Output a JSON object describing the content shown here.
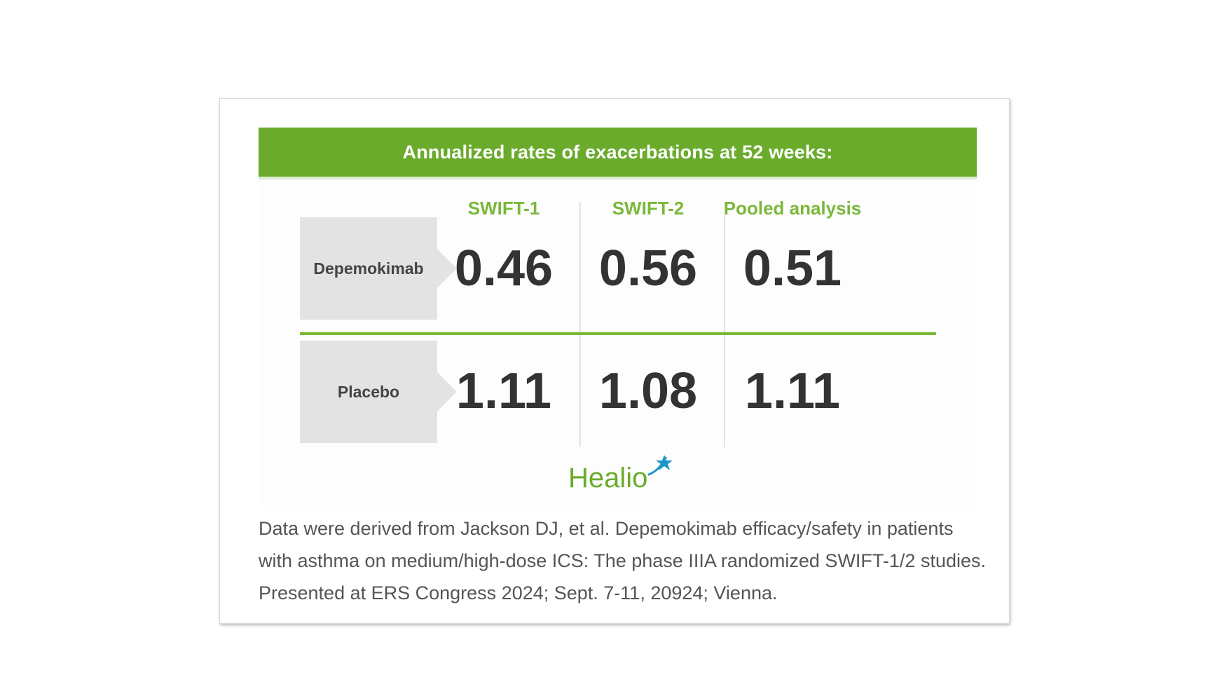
{
  "chart_data": {
    "type": "table",
    "title": "Annualized rates of exacerbations at 52 weeks:",
    "columns": [
      "SWIFT-1",
      "SWIFT-2",
      "Pooled analysis"
    ],
    "rows": [
      {
        "label": "Depemokimab",
        "values": [
          "0.46",
          "0.56",
          "0.51"
        ]
      },
      {
        "label": "Placebo",
        "values": [
          "1.11",
          "1.08",
          "1.11"
        ]
      }
    ]
  },
  "logo": {
    "text": "Healio"
  },
  "source": "Data were derived from Jackson DJ, et al. Depemokimab efficacy/safety in patients with asthma on medium/high-dose ICS: The phase IIIA randomized SWIFT-1/2 studies. Presented at ERS Congress 2024; Sept. 7-11, 20924; Vienna.",
  "colors": {
    "accent_green": "#6aab2c",
    "header_green": "#7ab83a",
    "label_gray": "#e3e3e3",
    "value_text": "#333333"
  }
}
